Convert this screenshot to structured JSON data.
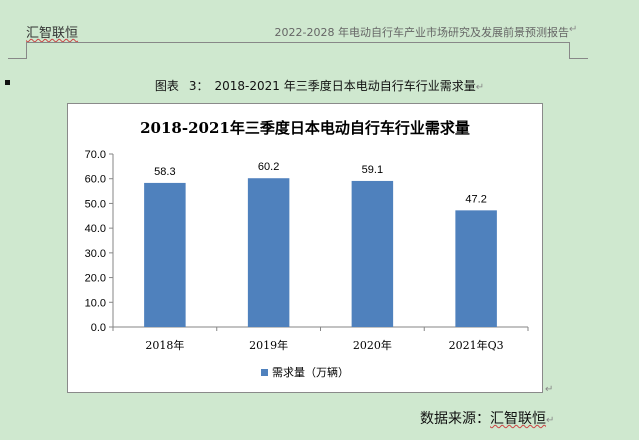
{
  "header": {
    "left_text": "汇智联恒",
    "right_text": "2022-2028 年电动自行车产业市场研究及发展前景预测报告",
    "paragraph_mark": "↵"
  },
  "caption": {
    "prefix": "图表",
    "number": "3：",
    "text": "2018-2021 年三季度日本电动自行车行业需求量",
    "paragraph_mark": "↵"
  },
  "chart_data": {
    "type": "bar",
    "title": "2018-2021年三季度日本电动自行车行业需求量",
    "categories": [
      "2018年",
      "2019年",
      "2020年",
      "2021年Q3"
    ],
    "series": [
      {
        "name": "需求量（万辆）",
        "values": [
          58.3,
          60.2,
          59.1,
          47.2
        ],
        "color": "#4f81bd"
      }
    ],
    "data_labels": [
      "58.3",
      "60.2",
      "59.1",
      "47.2"
    ],
    "ylim": [
      0,
      70
    ],
    "y_ticks": [
      "0.0",
      "10.0",
      "20.0",
      "30.0",
      "40.0",
      "50.0",
      "60.0",
      "70.0"
    ],
    "grid": false,
    "legend_position": "bottom"
  },
  "frame_paragraph_mark": "↵",
  "source": {
    "label": "数据来源：",
    "name": "汇智联恒",
    "paragraph_mark": "↵"
  }
}
